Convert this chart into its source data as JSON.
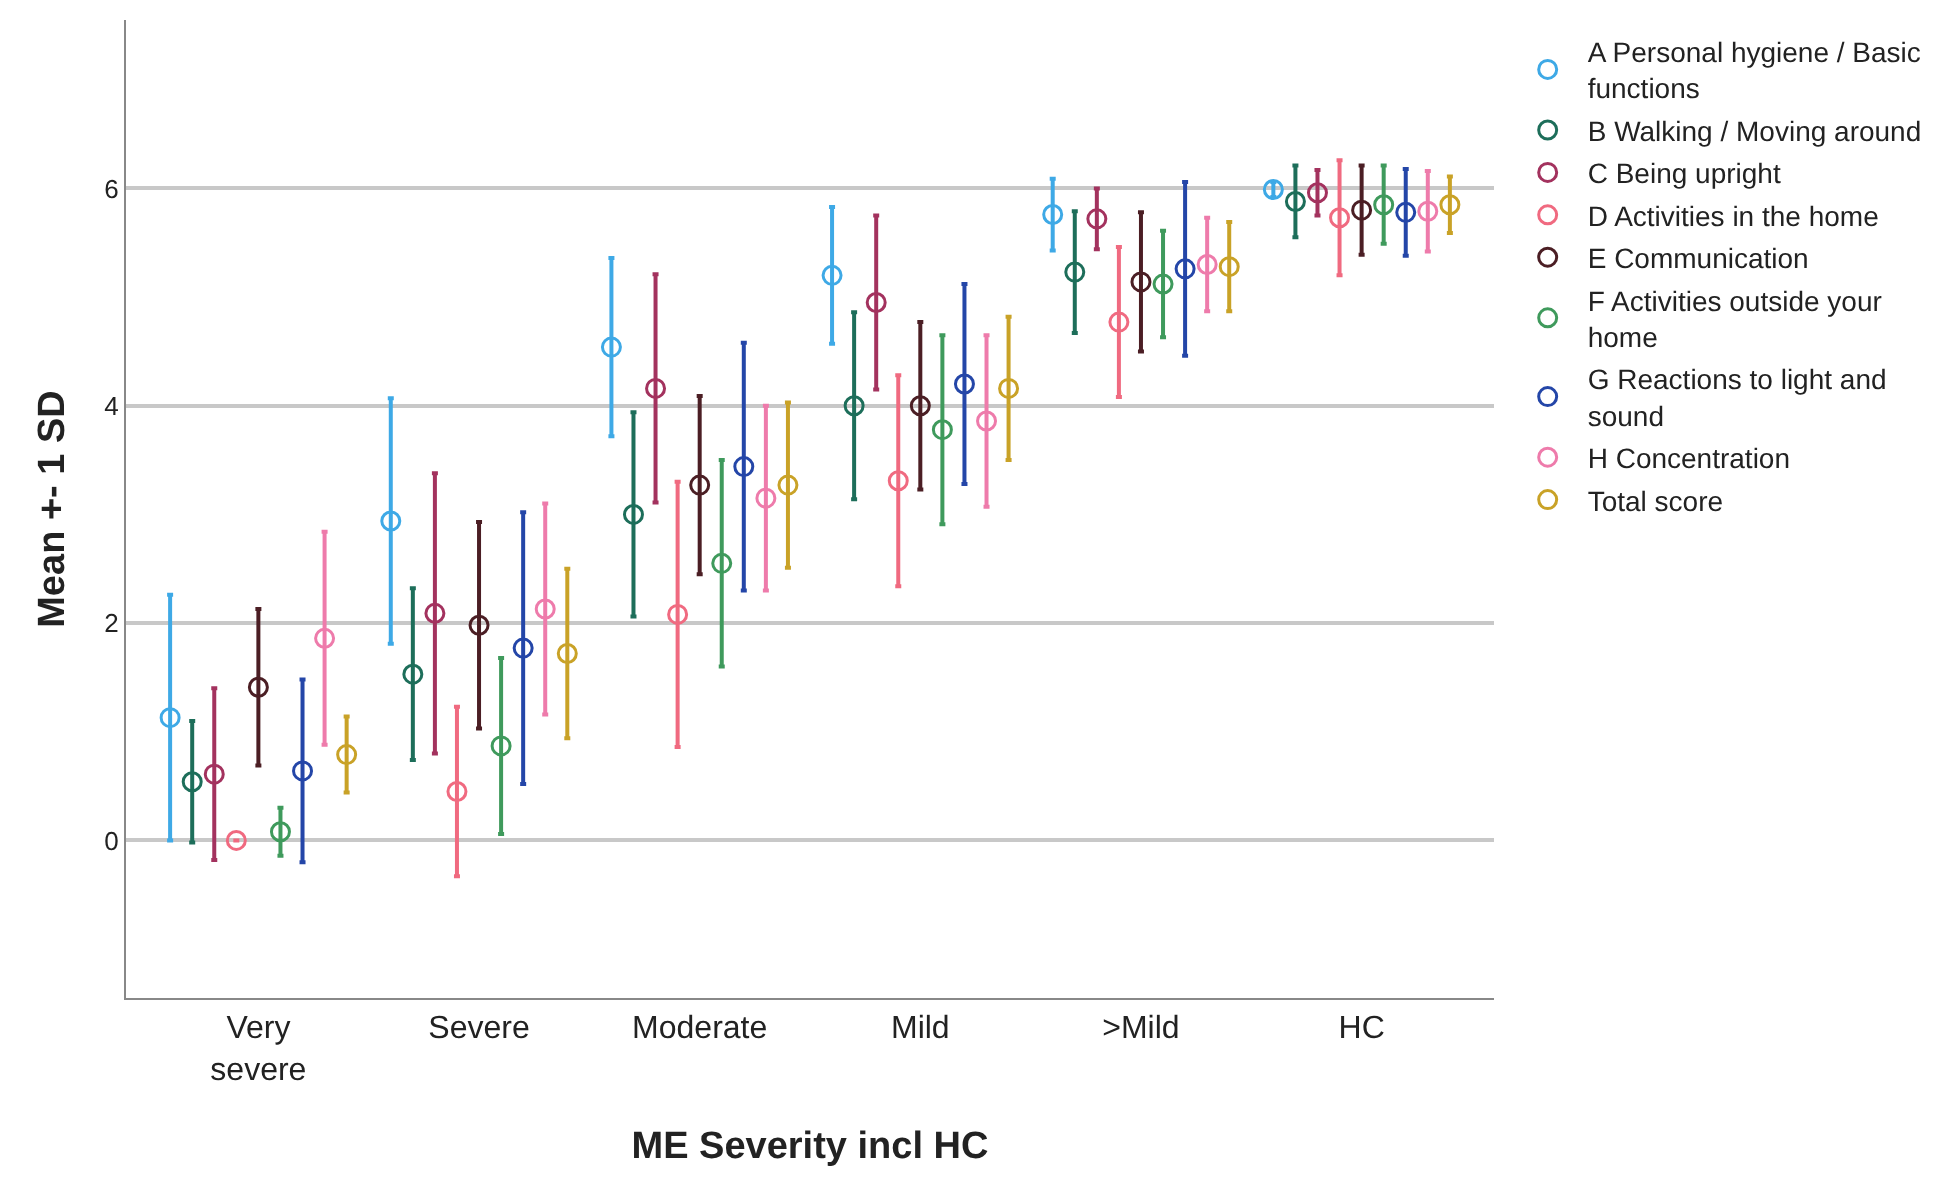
{
  "chart_data": {
    "type": "scatter",
    "xlabel": "ME Severity incl HC",
    "ylabel": "Mean +- 1 SD",
    "categories": [
      "Very\nsevere",
      "Severe",
      "Moderate",
      "Mild",
      ">Mild",
      "HC"
    ],
    "ylim": [
      -1.45,
      7.55
    ],
    "yticks": [
      0,
      2,
      4,
      6
    ],
    "grid": "y",
    "legend": "right",
    "marker": "circle",
    "series": [
      {
        "name": "A Personal hygiene / Basic functions",
        "color": "#3ea9e6",
        "values": [
          1.13,
          2.94,
          4.54,
          5.2,
          5.76,
          5.99
        ],
        "errors": [
          1.13,
          1.13,
          0.82,
          0.63,
          0.33,
          0.07
        ]
      },
      {
        "name": "B Walking / Moving around",
        "color": "#1d6e5a",
        "values": [
          0.54,
          1.53,
          3.0,
          4.0,
          5.23,
          5.88
        ],
        "errors": [
          0.56,
          0.79,
          0.94,
          0.86,
          0.56,
          0.33
        ]
      },
      {
        "name": "C Being upright",
        "color": "#a3325e",
        "values": [
          0.61,
          2.09,
          4.16,
          4.95,
          5.72,
          5.96
        ],
        "errors": [
          0.79,
          1.29,
          1.05,
          0.8,
          0.28,
          0.21
        ]
      },
      {
        "name": "D Activities in the home",
        "color": "#f06a80",
        "values": [
          0.0,
          0.45,
          2.08,
          3.31,
          4.77,
          5.73
        ],
        "errors": [
          0,
          0.78,
          1.22,
          0.97,
          0.69,
          0.53
        ]
      },
      {
        "name": "E Communication",
        "color": "#4b1e24",
        "values": [
          1.41,
          1.98,
          3.27,
          4.0,
          5.14,
          5.8
        ],
        "errors": [
          0.72,
          0.95,
          0.82,
          0.77,
          0.64,
          0.41
        ]
      },
      {
        "name": "F Activities outside your home",
        "color": "#3f9a5c",
        "values": [
          0.08,
          0.87,
          2.55,
          3.78,
          5.12,
          5.85
        ],
        "errors": [
          0.22,
          0.81,
          0.95,
          0.87,
          0.49,
          0.36
        ]
      },
      {
        "name": "G Reactions to light and sound",
        "color": "#2446a8",
        "values": [
          0.64,
          1.77,
          3.44,
          4.2,
          5.26,
          5.78
        ],
        "errors": [
          0.84,
          1.25,
          1.14,
          0.92,
          0.8,
          0.4
        ]
      },
      {
        "name": "H Concentration",
        "color": "#ee7bab",
        "values": [
          1.86,
          2.13,
          3.15,
          3.86,
          5.3,
          5.79
        ],
        "errors": [
          0.98,
          0.97,
          0.85,
          0.79,
          0.43,
          0.37
        ]
      },
      {
        "name": "Total score",
        "color": "#c9a227",
        "values": [
          0.79,
          1.72,
          3.27,
          4.16,
          5.28,
          5.85
        ],
        "errors": [
          0.35,
          0.78,
          0.76,
          0.66,
          0.41,
          0.26
        ]
      }
    ]
  }
}
